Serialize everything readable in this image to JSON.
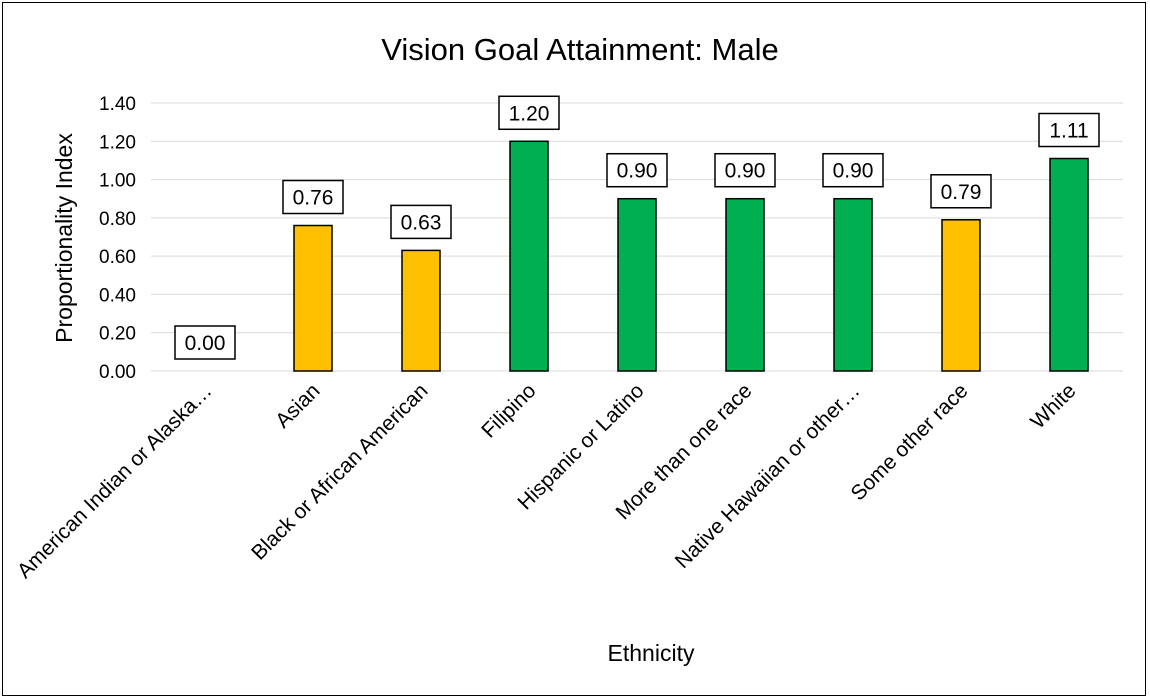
{
  "chart_data": {
    "type": "bar",
    "title": "Vision Goal Attainment: Male",
    "xlabel": "Ethnicity",
    "ylabel": "Proportionality Index",
    "ylim": [
      0,
      1.4
    ],
    "y_ticks": [
      "0.00",
      "0.20",
      "0.40",
      "0.60",
      "0.80",
      "1.00",
      "1.20",
      "1.40"
    ],
    "grid": true,
    "legend": "none",
    "categories": [
      "American Indian or Alaska…",
      "Asian",
      "Black or African American",
      "Filipino",
      "Hispanic or Latino",
      "More than one race",
      "Native Hawaiian or other…",
      "Some other race",
      "White"
    ],
    "values": [
      0.0,
      0.76,
      0.63,
      1.2,
      0.9,
      0.9,
      0.9,
      0.79,
      1.11
    ],
    "data_labels": [
      "0.00",
      "0.76",
      "0.63",
      "1.20",
      "0.90",
      "0.90",
      "0.90",
      "0.79",
      "1.11"
    ],
    "bar_colors": [
      "#ffc000",
      "#ffc000",
      "#ffc000",
      "#00b050",
      "#00b050",
      "#00b050",
      "#00b050",
      "#ffc000",
      "#00b050"
    ]
  }
}
